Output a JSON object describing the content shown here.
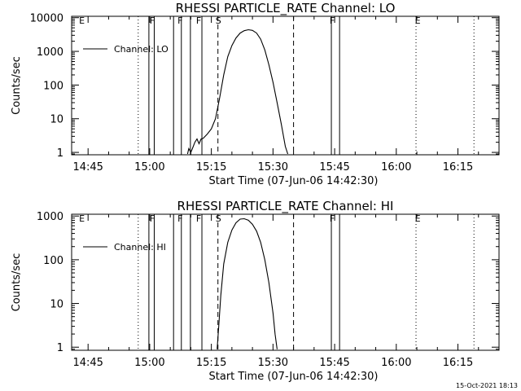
{
  "timestamp": "15-Oct-2021 18:13",
  "chart_data": [
    {
      "type": "line",
      "title": "RHESSI PARTICLE_RATE Channel: LO",
      "xlabel": "Start Time (07-Jun-06 14:42:30)",
      "ylabel": "Counts/sec",
      "yscale": "log",
      "ylim": [
        0.85,
        11000
      ],
      "xlim_minutes": [
        -4,
        100
      ],
      "x_ticks": [
        {
          "label": "14:45",
          "min": 0
        },
        {
          "label": "15:00",
          "min": 15
        },
        {
          "label": "15:15",
          "min": 30
        },
        {
          "label": "15:30",
          "min": 45
        },
        {
          "label": "15:45",
          "min": 60
        },
        {
          "label": "16:00",
          "min": 75
        },
        {
          "label": "16:15",
          "min": 90
        }
      ],
      "y_ticks": [
        {
          "label": "1",
          "v": 1
        },
        {
          "label": "10",
          "v": 10
        },
        {
          "label": "100",
          "v": 100
        },
        {
          "label": "1000",
          "v": 1000
        },
        {
          "label": "10000",
          "v": 10000
        }
      ],
      "legend": {
        "label": "Channel: LO",
        "position": "top-left"
      },
      "markers": [
        {
          "label": "E",
          "min": -1.5
        },
        {
          "label": "F",
          "min": 15.6
        },
        {
          "label": "F",
          "min": 22.4
        },
        {
          "label": "F",
          "min": 26.9
        },
        {
          "label": "S",
          "min": 31.7
        },
        {
          "label": "F",
          "min": 59.4
        },
        {
          "label": "E",
          "min": 80.2
        }
      ],
      "vlines": [
        {
          "min": 12.2,
          "style": "dotted"
        },
        {
          "min": 14.8,
          "style": "solid"
        },
        {
          "min": 16.1,
          "style": "solid"
        },
        {
          "min": 20.8,
          "style": "solid"
        },
        {
          "min": 22.7,
          "style": "solid"
        },
        {
          "min": 24.9,
          "style": "solid"
        },
        {
          "min": 27.7,
          "style": "solid"
        },
        {
          "min": 31.6,
          "style": "dashed"
        },
        {
          "min": 50.0,
          "style": "dashed"
        },
        {
          "min": 59.2,
          "style": "solid"
        },
        {
          "min": 61.2,
          "style": "solid"
        },
        {
          "min": 79.8,
          "style": "dotted"
        },
        {
          "min": 93.9,
          "style": "dotted"
        }
      ],
      "series": [
        {
          "x": [
            24.2,
            24.5,
            25.0,
            25.5,
            26.0,
            26.5,
            27.0,
            27.5,
            28.0,
            29.0,
            30.0,
            31.0,
            32.0,
            33.0,
            34.0,
            35.0,
            36.0,
            37.0,
            38.0,
            39.0,
            40.0,
            41.0,
            42.0,
            43.0,
            44.0,
            45.0,
            46.0,
            47.0,
            48.0,
            48.6
          ],
          "y": [
            0.9,
            1.3,
            1.0,
            1.4,
            2.0,
            2.5,
            1.8,
            2.5,
            2.6,
            3.5,
            5.0,
            10,
            40,
            200,
            700,
            1500,
            2500,
            3500,
            4100,
            4400,
            4200,
            3500,
            2300,
            1100,
            400,
            120,
            30,
            7,
            1.5,
            0.9
          ]
        }
      ]
    },
    {
      "type": "line",
      "title": "RHESSI PARTICLE_RATE Channel: HI",
      "xlabel": "Start Time (07-Jun-06 14:42:30)",
      "ylabel": "Counts/sec",
      "yscale": "log",
      "ylim": [
        0.85,
        1100
      ],
      "xlim_minutes": [
        -4,
        100
      ],
      "x_ticks": [
        {
          "label": "14:45",
          "min": 0
        },
        {
          "label": "15:00",
          "min": 15
        },
        {
          "label": "15:15",
          "min": 30
        },
        {
          "label": "15:30",
          "min": 45
        },
        {
          "label": "15:45",
          "min": 60
        },
        {
          "label": "16:00",
          "min": 75
        },
        {
          "label": "16:15",
          "min": 90
        }
      ],
      "y_ticks": [
        {
          "label": "1",
          "v": 1
        },
        {
          "label": "10",
          "v": 10
        },
        {
          "label": "100",
          "v": 100
        },
        {
          "label": "1000",
          "v": 1000
        }
      ],
      "legend": {
        "label": "Channel: HI",
        "position": "top-left"
      },
      "markers": [
        {
          "label": "E",
          "min": -1.5
        },
        {
          "label": "F",
          "min": 15.6
        },
        {
          "label": "F",
          "min": 22.4
        },
        {
          "label": "F",
          "min": 26.9
        },
        {
          "label": "S",
          "min": 31.7
        },
        {
          "label": "F",
          "min": 59.4
        },
        {
          "label": "E",
          "min": 80.2
        }
      ],
      "vlines": [
        {
          "min": 12.2,
          "style": "dotted"
        },
        {
          "min": 14.8,
          "style": "solid"
        },
        {
          "min": 16.1,
          "style": "solid"
        },
        {
          "min": 20.8,
          "style": "solid"
        },
        {
          "min": 22.7,
          "style": "solid"
        },
        {
          "min": 24.9,
          "style": "solid"
        },
        {
          "min": 27.7,
          "style": "solid"
        },
        {
          "min": 31.6,
          "style": "dashed"
        },
        {
          "min": 50.0,
          "style": "dashed"
        },
        {
          "min": 59.2,
          "style": "solid"
        },
        {
          "min": 61.2,
          "style": "solid"
        },
        {
          "min": 79.8,
          "style": "dotted"
        },
        {
          "min": 93.9,
          "style": "dotted"
        }
      ],
      "series": [
        {
          "x": [
            31.4,
            31.8,
            32.3,
            33.0,
            34.0,
            35.0,
            36.0,
            37.0,
            38.0,
            39.0,
            40.0,
            41.0,
            42.0,
            43.0,
            44.0,
            45.0,
            45.5,
            46.0
          ],
          "y": [
            0.9,
            3,
            15,
            80,
            250,
            480,
            700,
            850,
            870,
            800,
            650,
            450,
            250,
            100,
            30,
            6,
            2,
            0.9
          ]
        }
      ]
    }
  ]
}
